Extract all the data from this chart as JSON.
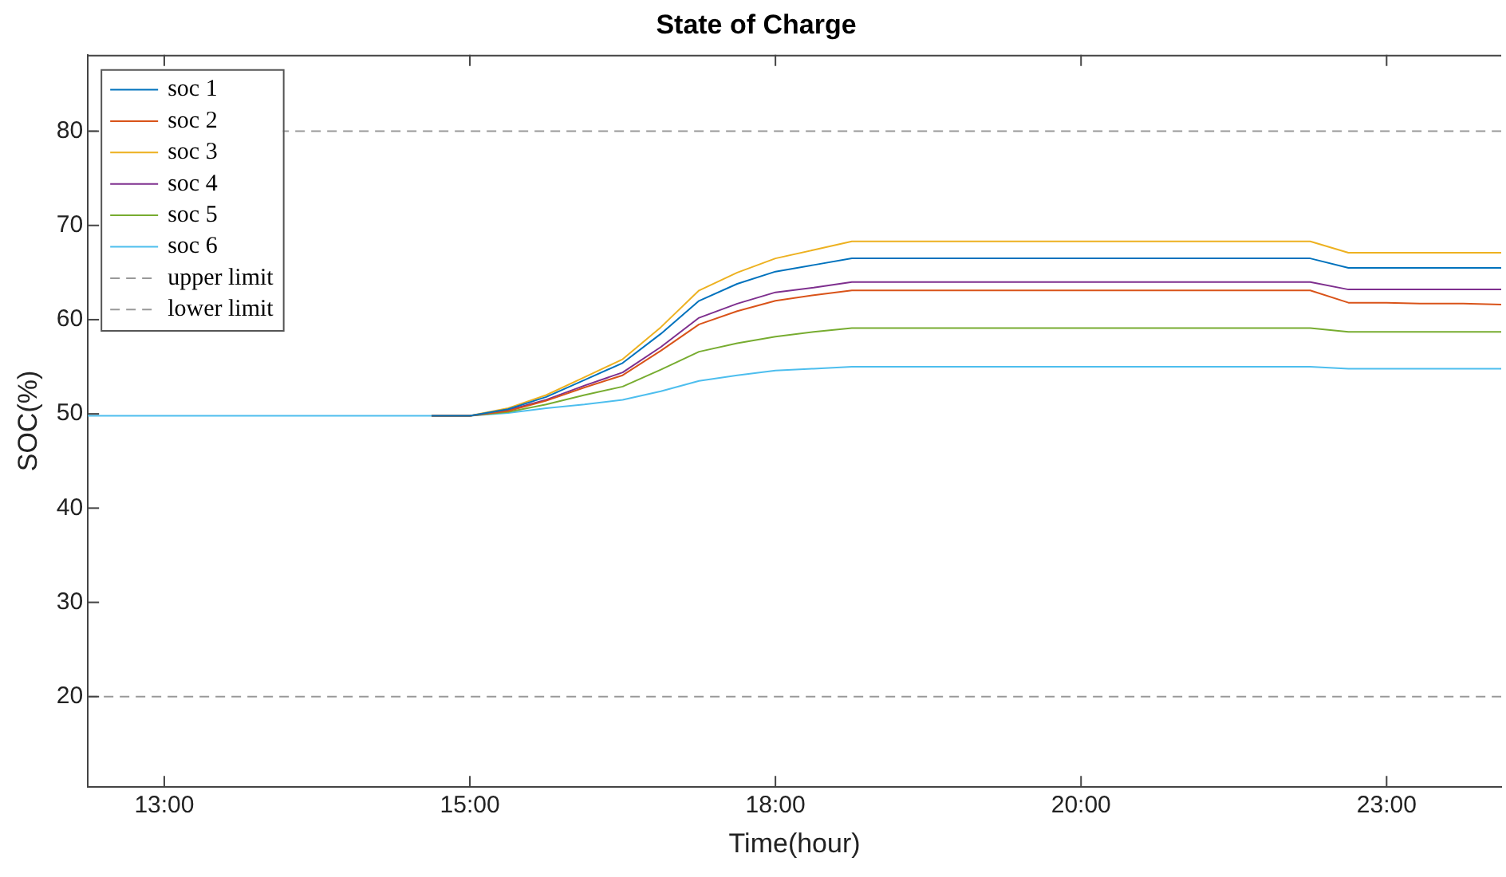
{
  "chart_data": {
    "type": "line",
    "title": "State of Charge",
    "xlabel": "Time(hour)",
    "ylabel": "SOC(%)",
    "categories": [
      null,
      null,
      "13:00",
      null,
      null,
      null,
      null,
      null,
      null,
      null,
      "15:00",
      null,
      null,
      null,
      null,
      null,
      null,
      null,
      "18:00",
      null,
      null,
      null,
      null,
      null,
      null,
      null,
      "20:00",
      null,
      null,
      null,
      null,
      null,
      null,
      null,
      "23:00",
      null,
      null,
      null
    ],
    "series": [
      {
        "name": "soc 1",
        "color": "#0072bd",
        "values": [
          null,
          null,
          null,
          null,
          null,
          null,
          null,
          null,
          null,
          49.8,
          49.8,
          50.5,
          51.8,
          53.6,
          55.4,
          58.5,
          62.0,
          63.8,
          65.1,
          65.8,
          66.5,
          66.5,
          66.5,
          66.5,
          66.5,
          66.5,
          66.5,
          66.5,
          66.5,
          66.5,
          66.5,
          66.5,
          66.5,
          65.5,
          65.5,
          65.5,
          65.5,
          65.5
        ]
      },
      {
        "name": "soc 2",
        "color": "#d95319",
        "values": [
          null,
          null,
          null,
          null,
          null,
          null,
          null,
          null,
          null,
          49.8,
          49.8,
          50.3,
          51.4,
          52.8,
          54.1,
          56.7,
          59.5,
          60.9,
          62.0,
          62.6,
          63.1,
          63.1,
          63.1,
          63.1,
          63.1,
          63.1,
          63.1,
          63.1,
          63.1,
          63.1,
          63.1,
          63.1,
          63.1,
          61.8,
          61.8,
          61.7,
          61.7,
          61.6
        ]
      },
      {
        "name": "soc 3",
        "color": "#edb120",
        "values": [
          null,
          null,
          null,
          null,
          null,
          null,
          null,
          null,
          null,
          49.8,
          49.8,
          50.6,
          52.0,
          53.9,
          55.8,
          59.2,
          63.1,
          65.0,
          66.5,
          67.4,
          68.3,
          68.3,
          68.3,
          68.3,
          68.3,
          68.3,
          68.3,
          68.3,
          68.3,
          68.3,
          68.3,
          68.3,
          68.3,
          67.1,
          67.1,
          67.1,
          67.1,
          67.1
        ]
      },
      {
        "name": "soc 4",
        "color": "#7e2f8e",
        "values": [
          null,
          null,
          null,
          null,
          null,
          null,
          null,
          null,
          null,
          49.8,
          49.8,
          50.4,
          51.5,
          53.0,
          54.4,
          57.1,
          60.2,
          61.7,
          62.9,
          63.4,
          64.0,
          64.0,
          64.0,
          64.0,
          64.0,
          64.0,
          64.0,
          64.0,
          64.0,
          64.0,
          64.0,
          64.0,
          64.0,
          63.2,
          63.2,
          63.2,
          63.2,
          63.2
        ]
      },
      {
        "name": "soc 5",
        "color": "#77ac30",
        "values": [
          null,
          null,
          null,
          null,
          null,
          null,
          null,
          null,
          null,
          49.8,
          49.8,
          50.2,
          51.0,
          52.0,
          52.9,
          54.7,
          56.6,
          57.5,
          58.2,
          58.7,
          59.1,
          59.1,
          59.1,
          59.1,
          59.1,
          59.1,
          59.1,
          59.1,
          59.1,
          59.1,
          59.1,
          59.1,
          59.1,
          58.7,
          58.7,
          58.7,
          58.7,
          58.7
        ]
      },
      {
        "name": "soc 6",
        "color": "#4dbeee",
        "values": [
          49.8,
          49.8,
          49.8,
          49.8,
          49.8,
          49.8,
          49.8,
          49.8,
          49.8,
          49.8,
          49.8,
          50.1,
          50.6,
          51.0,
          51.5,
          52.4,
          53.5,
          54.1,
          54.6,
          54.8,
          55.0,
          55.0,
          55.0,
          55.0,
          55.0,
          55.0,
          55.0,
          55.0,
          55.0,
          55.0,
          55.0,
          55.0,
          55.0,
          54.8,
          54.8,
          54.8,
          54.8,
          54.8
        ]
      }
    ],
    "ref_lines": [
      {
        "axis": "y",
        "value": 80,
        "label": "upper limit",
        "color": "#999999",
        "line_style": "dashed"
      },
      {
        "axis": "y",
        "value": 20,
        "label": "lower limit",
        "color": "#999999",
        "line_style": "dashed"
      }
    ],
    "ylim": [
      10.4,
      88.1
    ],
    "yticks": [
      20,
      30,
      40,
      50,
      60,
      70,
      80
    ],
    "grid": false,
    "legend": "top left",
    "marker": "none",
    "line_style": "solid"
  }
}
